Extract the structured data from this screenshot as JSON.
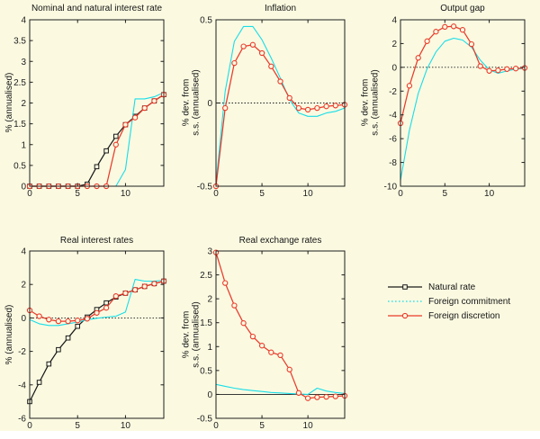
{
  "colors": {
    "natural": "#1a1a1a",
    "commitment": "#18dde8",
    "discretion": "#e93a2b",
    "axis": "#1d1d1d",
    "background": "#fbfae1"
  },
  "legend": {
    "items": [
      {
        "label": "Natural rate",
        "key": "natural",
        "marker": "square",
        "line": "solid"
      },
      {
        "label": "Foreign commitment",
        "key": "commitment",
        "marker": "none",
        "line": "dotted"
      },
      {
        "label": "Foreign discretion",
        "key": "discretion",
        "marker": "circle",
        "line": "solid"
      }
    ]
  },
  "chart_data": [
    {
      "type": "line",
      "title": "Nominal and natural interest rate",
      "ylabel_lines": [
        "% (annualised)"
      ],
      "xlim": [
        0,
        14
      ],
      "ylim": [
        0,
        4
      ],
      "xticks": [
        0,
        5,
        10
      ],
      "xtick_labels": [
        "0",
        "5",
        "10"
      ],
      "yticks": [
        0,
        0.5,
        1,
        1.5,
        2,
        2.5,
        3,
        3.5,
        4
      ],
      "ytick_labels": [
        "0",
        "0.5",
        "1",
        "1.5",
        "2",
        "2.5",
        "3",
        "3.5",
        "4"
      ],
      "zero_line": "none",
      "grid": "off",
      "x": [
        0,
        1,
        2,
        3,
        4,
        5,
        6,
        7,
        8,
        9,
        10,
        11,
        12,
        13,
        14
      ],
      "series": [
        {
          "name": "Natural rate",
          "key": "natural",
          "marker": "square",
          "values": [
            0,
            0,
            0,
            0,
            0,
            0,
            0.05,
            0.47,
            0.85,
            1.2,
            1.48,
            1.68,
            1.88,
            2.05,
            2.2
          ]
        },
        {
          "name": "Foreign commitment",
          "key": "commitment",
          "marker": "none",
          "values": [
            0,
            0,
            0,
            0,
            0,
            0,
            0,
            0,
            0,
            0,
            0.4,
            2.1,
            2.1,
            2.15,
            2.25
          ]
        },
        {
          "name": "Foreign discretion",
          "key": "discretion",
          "marker": "circle",
          "values": [
            0,
            0,
            0,
            0,
            0,
            0,
            0,
            0,
            0,
            1.0,
            1.48,
            1.65,
            1.88,
            2.05,
            2.2
          ]
        }
      ]
    },
    {
      "type": "line",
      "title": "Inflation",
      "ylabel_lines": [
        "% dev. from",
        "s.s. (annualised)"
      ],
      "xlim": [
        0,
        14
      ],
      "ylim": [
        -0.5,
        0.5
      ],
      "xticks": [
        0,
        5,
        10
      ],
      "xtick_labels": [
        "0",
        "5",
        "10"
      ],
      "yticks": [
        -0.5,
        0,
        0.5
      ],
      "ytick_labels": [
        "-0.5",
        "0",
        "0.5"
      ],
      "zero_line": "dotted",
      "grid": "off",
      "x": [
        0,
        1,
        2,
        3,
        4,
        5,
        6,
        7,
        8,
        9,
        10,
        11,
        12,
        13,
        14
      ],
      "series": [
        {
          "name": "Foreign commitment",
          "key": "commitment",
          "marker": "none",
          "values": [
            -0.48,
            0.07,
            0.37,
            0.46,
            0.46,
            0.38,
            0.27,
            0.15,
            0.02,
            -0.06,
            -0.08,
            -0.08,
            -0.06,
            -0.05,
            -0.03
          ]
        },
        {
          "name": "Foreign discretion",
          "key": "discretion",
          "marker": "circle",
          "values": [
            -0.5,
            -0.03,
            0.24,
            0.34,
            0.35,
            0.3,
            0.22,
            0.13,
            0.03,
            -0.03,
            -0.04,
            -0.03,
            -0.02,
            -0.015,
            -0.01
          ]
        }
      ]
    },
    {
      "type": "line",
      "title": "Output gap",
      "ylabel_lines": [
        "% dev. from",
        "s.s. (annualised)"
      ],
      "xlim": [
        0,
        14
      ],
      "ylim": [
        -10,
        4
      ],
      "xticks": [
        0,
        5,
        10
      ],
      "xtick_labels": [
        "0",
        "5",
        "10"
      ],
      "yticks": [
        -10,
        -8,
        -6,
        -4,
        -2,
        0,
        2,
        4
      ],
      "ytick_labels": [
        "-10",
        "-8",
        "-6",
        "-4",
        "-2",
        "0",
        "2",
        "4"
      ],
      "zero_line": "dotted",
      "grid": "off",
      "x": [
        0,
        1,
        2,
        3,
        4,
        5,
        6,
        7,
        8,
        9,
        10,
        11,
        12,
        13,
        14
      ],
      "series": [
        {
          "name": "Foreign commitment",
          "key": "commitment",
          "marker": "none",
          "values": [
            -9.5,
            -5.3,
            -2.2,
            -0.1,
            1.3,
            2.2,
            2.45,
            2.3,
            1.7,
            0.6,
            -0.2,
            -0.5,
            -0.3,
            -0.15,
            -0.1
          ]
        },
        {
          "name": "Foreign discretion",
          "key": "discretion",
          "marker": "circle",
          "values": [
            -4.7,
            -1.55,
            0.8,
            2.2,
            3.0,
            3.4,
            3.45,
            3.15,
            1.95,
            0.1,
            -0.3,
            -0.25,
            -0.15,
            -0.1,
            -0.05
          ]
        }
      ]
    },
    {
      "type": "line",
      "title": "Real interest rates",
      "ylabel_lines": [
        "% (annualised)"
      ],
      "xlim": [
        0,
        14
      ],
      "ylim": [
        -6,
        4
      ],
      "xticks": [
        0,
        5,
        10
      ],
      "xtick_labels": [
        "0",
        "5",
        "10"
      ],
      "yticks": [
        -6,
        -4,
        -2,
        0,
        2,
        4
      ],
      "ytick_labels": [
        "-6",
        "-4",
        "-2",
        "0",
        "2",
        "4"
      ],
      "zero_line": "dotted",
      "grid": "off",
      "x": [
        0,
        1,
        2,
        3,
        4,
        5,
        6,
        7,
        8,
        9,
        10,
        11,
        12,
        13,
        14
      ],
      "series": [
        {
          "name": "Natural rate",
          "key": "natural",
          "marker": "square",
          "values": [
            -5.0,
            -3.85,
            -2.75,
            -1.9,
            -1.2,
            -0.5,
            0.05,
            0.5,
            0.9,
            1.25,
            1.48,
            1.68,
            1.88,
            2.05,
            2.2
          ]
        },
        {
          "name": "Foreign commitment",
          "key": "commitment",
          "marker": "none",
          "values": [
            -0.1,
            -0.35,
            -0.45,
            -0.45,
            -0.35,
            -0.25,
            -0.12,
            -0.02,
            0.05,
            0.1,
            0.35,
            2.3,
            2.2,
            2.2,
            2.25
          ]
        },
        {
          "name": "Foreign discretion",
          "key": "discretion",
          "marker": "circle",
          "values": [
            0.45,
            0.1,
            -0.1,
            -0.2,
            -0.2,
            -0.15,
            -0.05,
            0.3,
            0.6,
            1.3,
            1.48,
            1.68,
            1.88,
            2.05,
            2.2
          ]
        }
      ]
    },
    {
      "type": "line",
      "title": "Real exchange rates",
      "ylabel_lines": [
        "% dev. from",
        "s.s. (annualised)"
      ],
      "xlim": [
        0,
        14
      ],
      "ylim": [
        -0.5,
        3
      ],
      "xticks": [
        0,
        5,
        10
      ],
      "xtick_labels": [
        "0",
        "5",
        "10"
      ],
      "yticks": [
        -0.5,
        0,
        0.5,
        1,
        1.5,
        2,
        2.5,
        3
      ],
      "ytick_labels": [
        "-0.5",
        "0",
        "0.5",
        "1",
        "1.5",
        "2",
        "2.5",
        "3"
      ],
      "zero_line": "solid",
      "grid": "off",
      "x": [
        0,
        1,
        2,
        3,
        4,
        5,
        6,
        7,
        8,
        9,
        10,
        11,
        12,
        13,
        14
      ],
      "series": [
        {
          "name": "Foreign commitment",
          "key": "commitment",
          "marker": "none",
          "values": [
            0.21,
            0.17,
            0.13,
            0.1,
            0.08,
            0.06,
            0.04,
            0.03,
            0.02,
            0.01,
            0.0,
            0.13,
            0.07,
            0.04,
            0.02
          ]
        },
        {
          "name": "Foreign discretion",
          "key": "discretion",
          "marker": "circle",
          "values": [
            2.97,
            2.33,
            1.86,
            1.49,
            1.21,
            1.02,
            0.88,
            0.82,
            0.52,
            0.03,
            -0.08,
            -0.06,
            -0.05,
            -0.04,
            -0.03
          ]
        }
      ]
    }
  ]
}
